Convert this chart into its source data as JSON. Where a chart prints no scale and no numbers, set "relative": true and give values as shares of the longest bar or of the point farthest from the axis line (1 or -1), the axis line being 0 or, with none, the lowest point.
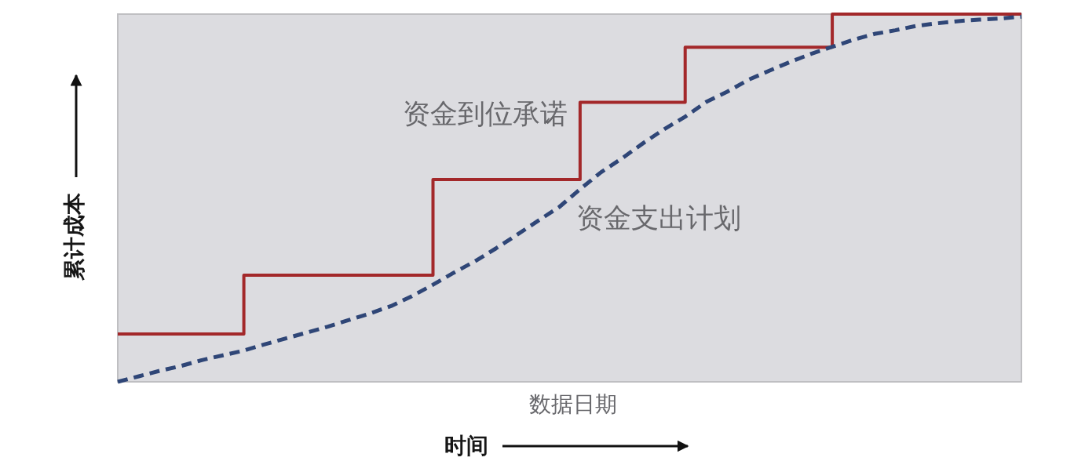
{
  "chart_data": {
    "type": "line",
    "relative": true,
    "xlabel": "时间",
    "ylabel": "累计成本",
    "annotations": [
      "数据日期"
    ],
    "categories": [
      null,
      null,
      null,
      null,
      null,
      null,
      null,
      null,
      null,
      null,
      null,
      null,
      null,
      null,
      null,
      null,
      null,
      null,
      null,
      null,
      null,
      null,
      null,
      null,
      null,
      null,
      null,
      null,
      null,
      null,
      null,
      null,
      null,
      null,
      null,
      null,
      null,
      null,
      null,
      null,
      null,
      null,
      null,
      null
    ],
    "series": [
      {
        "name": "资金到位承诺",
        "type": "step",
        "line_style": "solid",
        "color": "#a3282a",
        "values": [
          0.13,
          0.13,
          0.13,
          0.13,
          0.13,
          0.13,
          0.29,
          0.29,
          0.29,
          0.29,
          0.29,
          0.29,
          0.29,
          0.29,
          0.29,
          0.55,
          0.55,
          0.55,
          0.55,
          0.55,
          0.55,
          0.55,
          0.76,
          0.76,
          0.76,
          0.76,
          0.76,
          0.91,
          0.91,
          0.91,
          0.91,
          0.91,
          0.91,
          0.91,
          1,
          1,
          1,
          1,
          1,
          1,
          1,
          1,
          1,
          1
        ]
      },
      {
        "name": "资金支出计划",
        "line_style": "dashed",
        "color": "#2f4677",
        "values": [
          0,
          0.015,
          0.03,
          0.043,
          0.059,
          0.072,
          0.085,
          0.102,
          0.118,
          0.134,
          0.15,
          0.168,
          0.186,
          0.206,
          0.233,
          0.264,
          0.297,
          0.328,
          0.363,
          0.4,
          0.438,
          0.475,
          0.524,
          0.57,
          0.608,
          0.649,
          0.687,
          0.721,
          0.761,
          0.789,
          0.821,
          0.846,
          0.87,
          0.892,
          0.911,
          0.93,
          0.946,
          0.956,
          0.968,
          0.975,
          0.981,
          0.985,
          0.988,
          0.993
        ]
      }
    ]
  }
}
